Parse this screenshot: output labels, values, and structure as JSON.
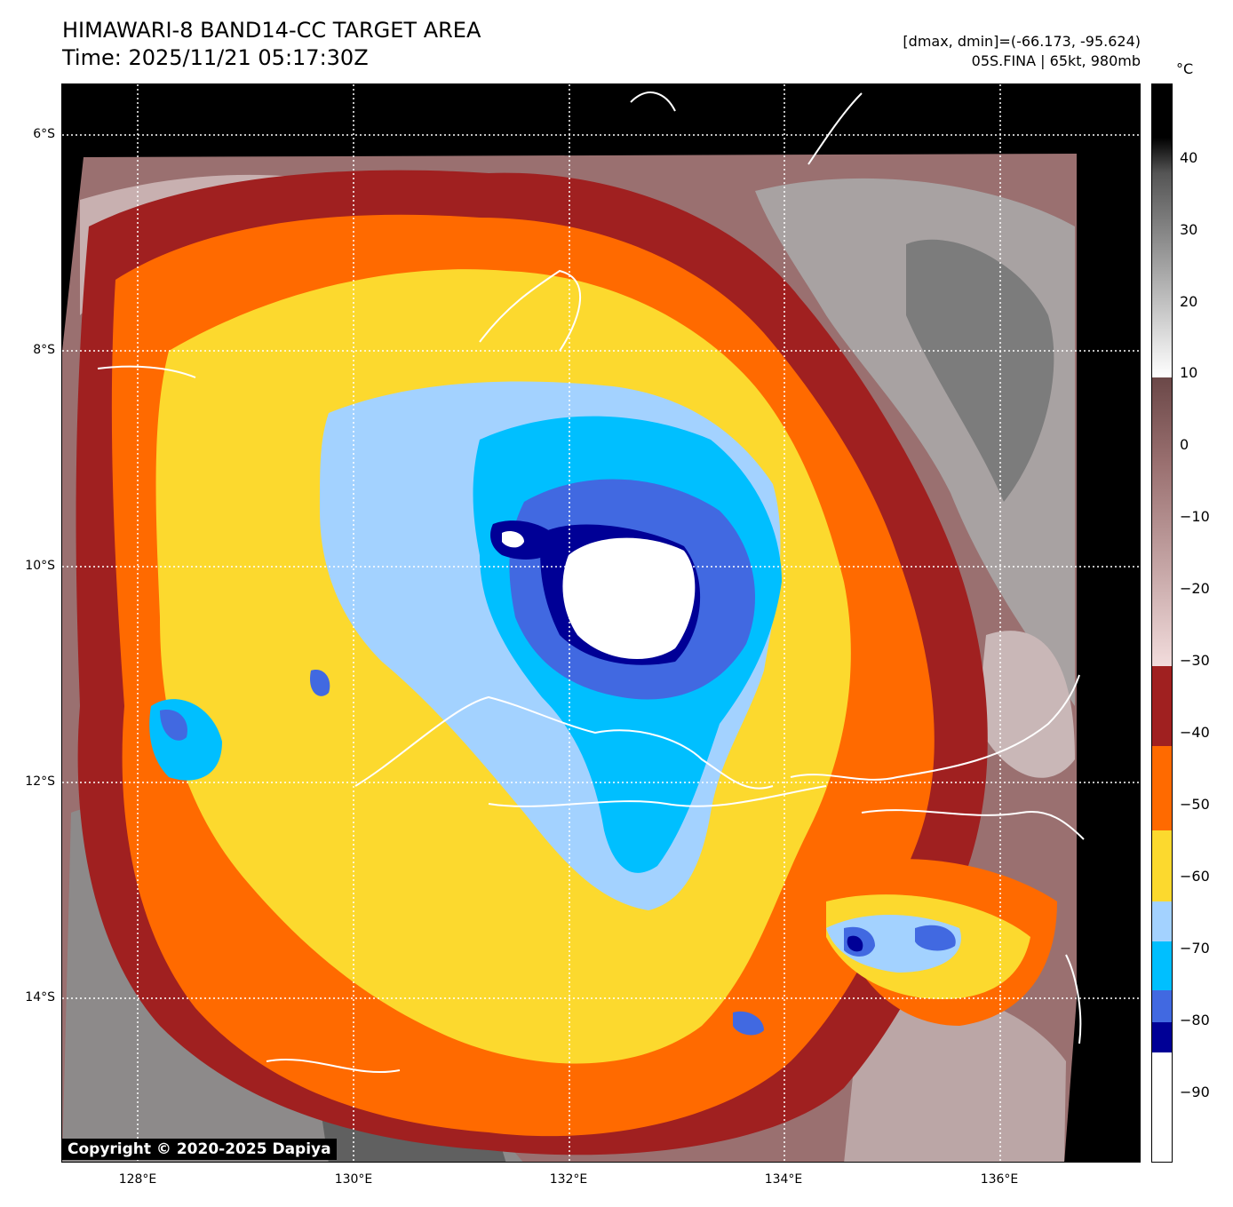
{
  "title": {
    "line1": "HIMAWARI-8 BAND14-CC TARGET AREA",
    "line2": "Time: 2025/11/21 05:17:30Z"
  },
  "info": {
    "line1": "[dmax, dmin]=(-66.173, -95.624)",
    "line2": "05S.FINA | 65kt, 980mb"
  },
  "map": {
    "lat_ticks": [
      "6°S",
      "8°S",
      "10°S",
      "12°S",
      "14°S"
    ],
    "lon_ticks": [
      "128°E",
      "130°E",
      "132°E",
      "134°E",
      "136°E"
    ],
    "copyright": "Copyright © 2020-2025 Dapiya",
    "colors": {
      "white_core": "#ffffff",
      "navy": "#000096",
      "royal_blue": "#4169e1",
      "deep_sky": "#00bfff",
      "light_blue": "#a3d2ff",
      "yellow": "#fcd92e",
      "orange": "#ff6a00",
      "dark_red": "#a02020",
      "brown_pink": "#8a5a5a",
      "gray": "#a0a0a0"
    }
  },
  "colorbar": {
    "unit": "°C",
    "labels": [
      "40",
      "30",
      "20",
      "10",
      "0",
      "−10",
      "−20",
      "−30",
      "−40",
      "−50",
      "−60",
      "−70",
      "−80",
      "−90"
    ]
  }
}
